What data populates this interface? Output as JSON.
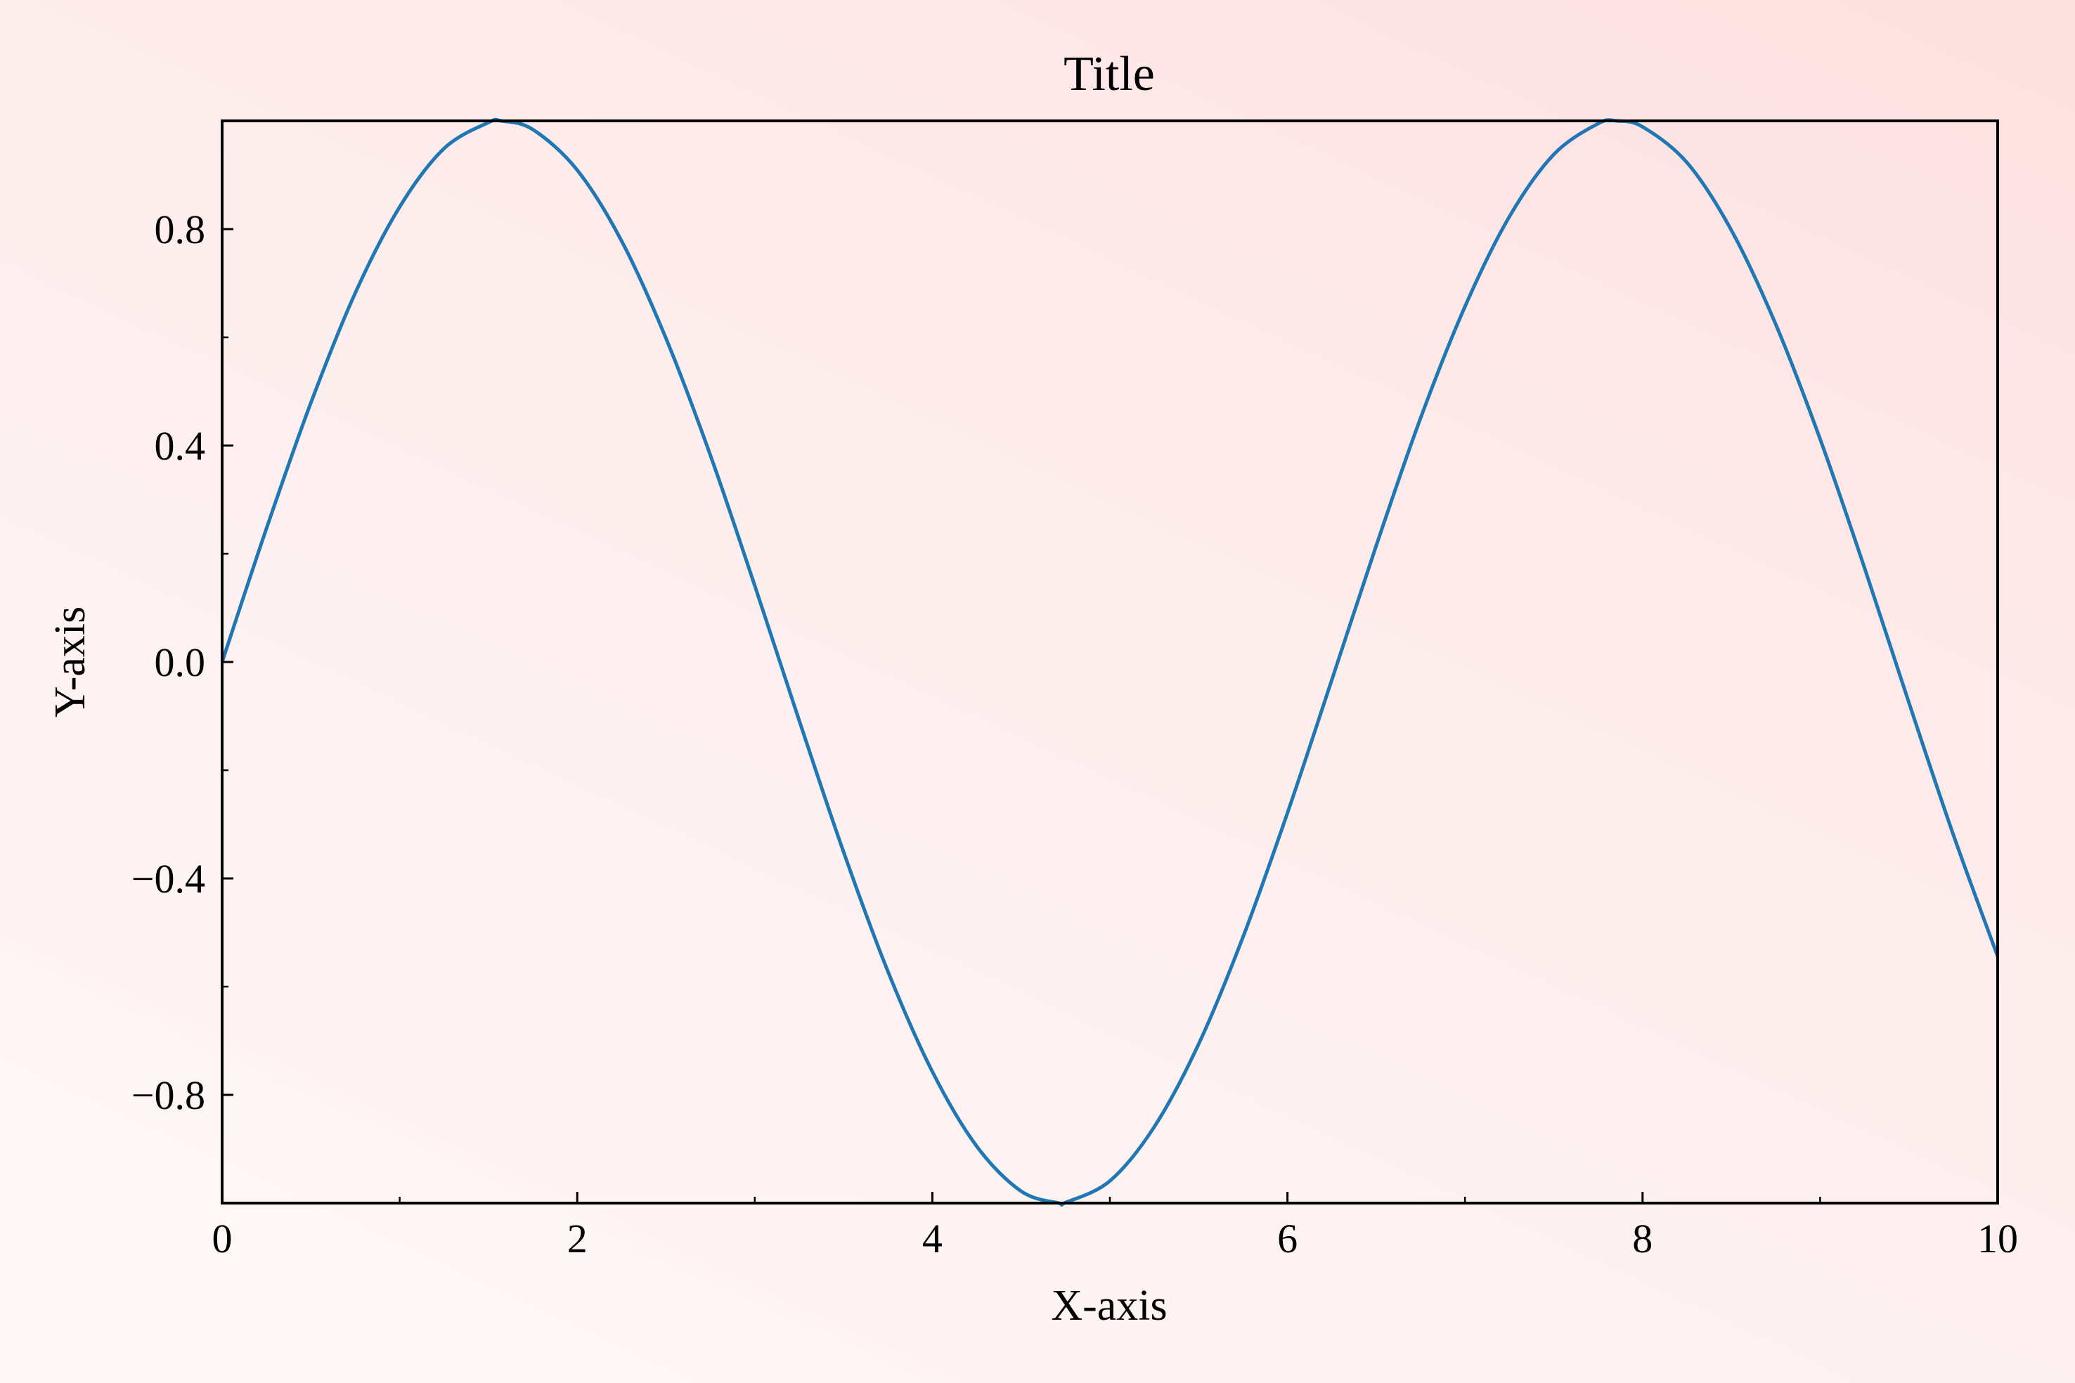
{
  "chart_data": {
    "type": "line",
    "title": "Title",
    "xlabel": "X-axis",
    "ylabel": "Y-axis",
    "xlim": [
      0,
      10
    ],
    "ylim": [
      -1,
      1
    ],
    "grid": false,
    "x_ticks": [
      0,
      2,
      4,
      6,
      8,
      10
    ],
    "x_tick_labels": [
      "0",
      "2",
      "4",
      "6",
      "8",
      "10"
    ],
    "x_minor_ticks": [
      1,
      3,
      5,
      7,
      9
    ],
    "y_ticks": [
      0.8,
      0.4,
      0.0,
      -0.4,
      -0.8
    ],
    "y_tick_labels": [
      "0.8",
      "0.4",
      "0.0",
      "−0.4",
      "−0.8"
    ],
    "y_minor_ticks": [
      0.6,
      0.2,
      -0.2,
      -0.6
    ],
    "series": [
      {
        "color": "#1f77b4",
        "x": [
          0,
          0.25,
          0.5,
          0.75,
          1,
          1.25,
          1.5,
          1.5708,
          1.75,
          2,
          2.25,
          2.5,
          2.75,
          3,
          3.25,
          3.5,
          3.75,
          4,
          4.25,
          4.5,
          4.7124,
          4.75,
          5,
          5.25,
          5.5,
          5.75,
          6,
          6.25,
          6.5,
          6.75,
          7,
          7.25,
          7.5,
          7.75,
          7.854,
          8,
          8.25,
          8.5,
          8.75,
          9,
          9.25,
          9.5,
          9.75,
          10
        ],
        "y": [
          0,
          0.247,
          0.479,
          0.682,
          0.841,
          0.949,
          0.997,
          1,
          0.984,
          0.909,
          0.778,
          0.598,
          0.382,
          0.141,
          -0.108,
          -0.351,
          -0.572,
          -0.757,
          -0.895,
          -0.978,
          -1,
          -0.999,
          -0.959,
          -0.859,
          -0.706,
          -0.508,
          -0.279,
          -0.033,
          0.215,
          0.451,
          0.657,
          0.823,
          0.938,
          0.995,
          1,
          0.989,
          0.923,
          0.798,
          0.624,
          0.412,
          0.174,
          -0.075,
          -0.319,
          -0.544
        ]
      }
    ]
  }
}
